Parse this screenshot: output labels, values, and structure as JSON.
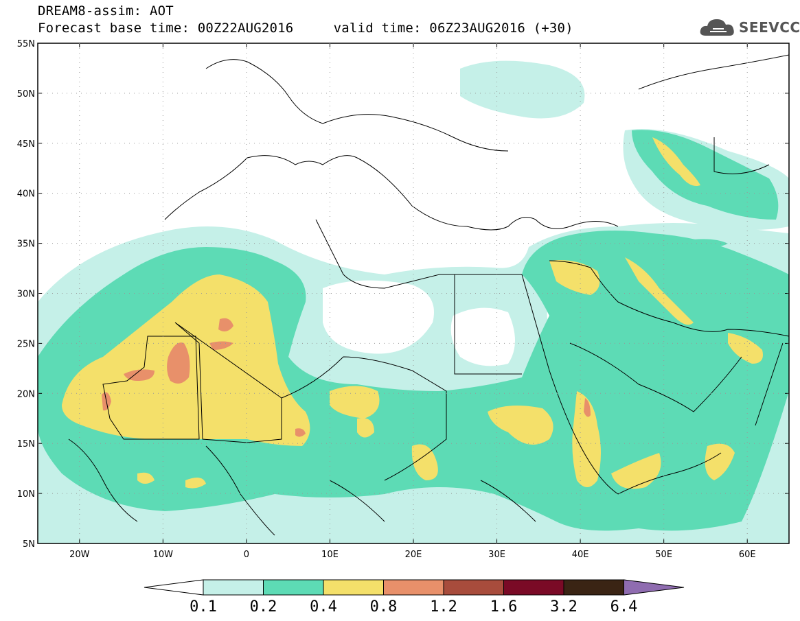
{
  "header": {
    "title_line1": "DREAM8-assim: AOT",
    "title_line2": "Forecast base time: 00Z22AUG2016     valid time: 06Z23AUG2016 (+30)"
  },
  "brand": {
    "name": "SEEVCCC",
    "icon": "cloud-logo-icon"
  },
  "map": {
    "lon_range": [
      -25,
      65
    ],
    "lat_range": [
      5,
      55
    ],
    "lat_ticks": [
      {
        "value": 55,
        "label": "55N"
      },
      {
        "value": 50,
        "label": "50N"
      },
      {
        "value": 45,
        "label": "45N"
      },
      {
        "value": 40,
        "label": "40N"
      },
      {
        "value": 35,
        "label": "35N"
      },
      {
        "value": 30,
        "label": "30N"
      },
      {
        "value": 25,
        "label": "25N"
      },
      {
        "value": 20,
        "label": "20N"
      },
      {
        "value": 15,
        "label": "15N"
      },
      {
        "value": 10,
        "label": "10N"
      },
      {
        "value": 5,
        "label": "5N"
      }
    ],
    "lon_ticks": [
      {
        "value": -20,
        "label": "20W"
      },
      {
        "value": -10,
        "label": "10W"
      },
      {
        "value": 0,
        "label": "0"
      },
      {
        "value": 10,
        "label": "10E"
      },
      {
        "value": 20,
        "label": "20E"
      },
      {
        "value": 30,
        "label": "30E"
      },
      {
        "value": 40,
        "label": "40E"
      },
      {
        "value": 50,
        "label": "50E"
      },
      {
        "value": 60,
        "label": "60E"
      }
    ]
  },
  "colorbar": {
    "colors": [
      "#ffffff",
      "#c5f0e8",
      "#5ddbb5",
      "#f4e06a",
      "#e8906a",
      "#a84c3c",
      "#7a0a26",
      "#3a2414",
      "#8f6cb0"
    ],
    "labels": [
      "0.1",
      "0.2",
      "0.4",
      "0.8",
      "1.2",
      "1.6",
      "3.2",
      "6.4"
    ]
  }
}
